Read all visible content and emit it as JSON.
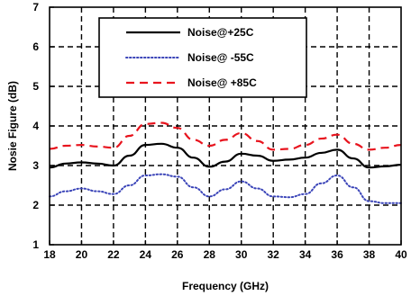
{
  "chart_data": {
    "type": "line",
    "title": "",
    "xlabel": "Frequency (GHz)",
    "ylabel": "Nosie Figure (dB)",
    "xlim": [
      18,
      40
    ],
    "ylim": [
      1,
      7
    ],
    "grid": true,
    "legend_position": "top-center",
    "x_ticks": [
      "18",
      "20",
      "22",
      "24",
      "26",
      "28",
      "30",
      "32",
      "34",
      "36",
      "38",
      "40"
    ],
    "y_ticks": [
      "1",
      "2",
      "3",
      "4",
      "5",
      "6",
      "7"
    ],
    "series": [
      {
        "name": "Noise@+25C",
        "color": "#000000",
        "style": "solid",
        "x": [
          18,
          19,
          20,
          21,
          22,
          23,
          24,
          25,
          26,
          27,
          28,
          29,
          30,
          31,
          32,
          33,
          34,
          35,
          36,
          37,
          38,
          39,
          40
        ],
        "y": [
          2.95,
          3.05,
          3.08,
          3.05,
          3.0,
          3.25,
          3.52,
          3.55,
          3.45,
          3.2,
          2.97,
          3.1,
          3.3,
          3.25,
          3.12,
          3.15,
          3.2,
          3.32,
          3.4,
          3.18,
          2.95,
          2.98,
          3.02
        ]
      },
      {
        "name": "Noise@ -55C",
        "color": "#3a44b8",
        "style": "dotted",
        "x": [
          18,
          19,
          20,
          21,
          22,
          23,
          24,
          25,
          26,
          27,
          28,
          29,
          30,
          31,
          32,
          33,
          34,
          35,
          36,
          37,
          38,
          39,
          40
        ],
        "y": [
          2.22,
          2.35,
          2.42,
          2.35,
          2.28,
          2.5,
          2.75,
          2.78,
          2.72,
          2.45,
          2.22,
          2.4,
          2.6,
          2.42,
          2.22,
          2.2,
          2.28,
          2.55,
          2.75,
          2.45,
          2.1,
          2.05,
          2.05
        ]
      },
      {
        "name": "Noise@ +85C",
        "color": "#e8141e",
        "style": "dashed",
        "x": [
          18,
          19,
          20,
          21,
          22,
          23,
          24,
          25,
          26,
          27,
          28,
          29,
          30,
          31,
          32,
          33,
          34,
          35,
          36,
          37,
          38,
          39,
          40
        ],
        "y": [
          3.42,
          3.5,
          3.52,
          3.48,
          3.45,
          3.75,
          4.05,
          4.08,
          3.95,
          3.65,
          3.5,
          3.65,
          3.82,
          3.62,
          3.4,
          3.42,
          3.52,
          3.68,
          3.78,
          3.55,
          3.4,
          3.45,
          3.52
        ]
      }
    ]
  }
}
